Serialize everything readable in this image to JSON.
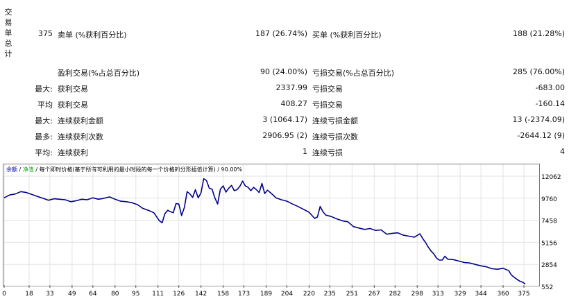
{
  "side_label": [
    "交",
    "易",
    "单",
    "总",
    "计"
  ],
  "summary": {
    "total_trades": "375",
    "short_label": "卖单 (%获利百分比)",
    "short_value": "187 (26.74%)",
    "long_label": "买单 (%获利百分比)",
    "long_value": "188 (21.28%)"
  },
  "rows": [
    {
      "prefix": "",
      "left_label": "盈利交易(%占总百分比)",
      "left_value": "90 (24.00%)",
      "right_label": "亏损交易(%占总百分比)",
      "right_value": "285 (76.00%)"
    },
    {
      "prefix": "最大:",
      "left_label": "获利交易",
      "left_value": "2337.99",
      "right_label": "亏损交易",
      "right_value": "-683.00"
    },
    {
      "prefix": "平均",
      "left_label": "获利交易",
      "left_value": "408.27",
      "right_label": "亏损交易",
      "right_value": "-160.14"
    },
    {
      "prefix": "最大:",
      "left_label": "连续获利金额",
      "left_value": "3 (1064.17)",
      "right_label": "连续亏损金额",
      "right_value": "13 (-2374.09)"
    },
    {
      "prefix": "最多:",
      "left_label": "连续获利次数",
      "left_value": "2906.95 (2)",
      "right_label": "连续亏损次数",
      "right_value": "-2644.12 (9)"
    },
    {
      "prefix": "平均:",
      "left_label": "连续获利",
      "left_value": "1",
      "right_label": "连续亏损",
      "right_value": "4"
    }
  ],
  "chart_legend": {
    "balance": "余额",
    "sep1": " / ",
    "equity": "净值",
    "sep2": " / ",
    "model": "每个即时价格(基于所有可利用的最小时段的每一个价格的分形插值计算)",
    "sep3": " / ",
    "quality": "90.00%"
  },
  "chart_data": {
    "type": "line",
    "title": "",
    "xlabel": "",
    "ylabel": "",
    "x_ticks": [
      "0",
      "18",
      "33",
      "49",
      "64",
      "80",
      "95",
      "111",
      "126",
      "142",
      "158",
      "173",
      "189",
      "204",
      "220",
      "235",
      "251",
      "267",
      "282",
      "298",
      "313",
      "329",
      "344",
      "360",
      "375"
    ],
    "y_ticks": [
      "12062",
      "9760",
      "7458",
      "5156",
      "2854",
      "552"
    ],
    "ylim": [
      552,
      12062
    ],
    "xlim": [
      0,
      385
    ],
    "grid": true,
    "colors": {
      "line": "#00008b",
      "grid": "#e3e3e3"
    },
    "series": [
      {
        "x": [
          0,
          4,
          8,
          12,
          16,
          20,
          24,
          28,
          32,
          36,
          40,
          44,
          48,
          52,
          56,
          60,
          64,
          68,
          72,
          76,
          80,
          84,
          88,
          92,
          96,
          100,
          104,
          108,
          112,
          114,
          116,
          118,
          120,
          122,
          124,
          126,
          128,
          130,
          132,
          134,
          136,
          138,
          140,
          142,
          144,
          146,
          148,
          150,
          152,
          154,
          156,
          158,
          160,
          162,
          164,
          166,
          168,
          170,
          172,
          174,
          176,
          178,
          180,
          182,
          184,
          186,
          188,
          190,
          192,
          194,
          196,
          198,
          200,
          204,
          208,
          212,
          216,
          220,
          224,
          226,
          228,
          230,
          232,
          236,
          240,
          244,
          248,
          252,
          256,
          260,
          264,
          268,
          272,
          276,
          280,
          284,
          288,
          292,
          296,
          300,
          302,
          304,
          306,
          308,
          310,
          312,
          314,
          316,
          318,
          320,
          324,
          328,
          332,
          336,
          340,
          344,
          348,
          352,
          356,
          360,
          364,
          366,
          368,
          370,
          372,
          374,
          376
        ],
        "values": [
          9800,
          10100,
          10200,
          10450,
          10350,
          10150,
          9950,
          9750,
          9550,
          9700,
          9650,
          9600,
          9400,
          9500,
          9650,
          9600,
          9800,
          9650,
          9750,
          9900,
          9650,
          9450,
          9400,
          9300,
          9100,
          8700,
          8500,
          8250,
          7400,
          7200,
          8150,
          8500,
          8350,
          8250,
          9200,
          9150,
          7950,
          8800,
          10450,
          10200,
          9850,
          10650,
          9800,
          10300,
          11800,
          11600,
          10800,
          10700,
          9800,
          9150,
          10700,
          11050,
          10400,
          10800,
          11100,
          10550,
          10650,
          11000,
          11550,
          11050,
          10900,
          10550,
          10900,
          10650,
          10350,
          11300,
          10250,
          10600,
          10350,
          10100,
          9800,
          9700,
          9600,
          9450,
          9150,
          8900,
          8600,
          8300,
          7650,
          7800,
          8900,
          8350,
          8000,
          7850,
          7600,
          7400,
          7300,
          6800,
          6650,
          6500,
          6600,
          6400,
          6450,
          6000,
          6100,
          6150,
          5900,
          5800,
          5700,
          6050,
          5550,
          5150,
          4650,
          4250,
          3950,
          3500,
          3300,
          3300,
          3700,
          3400,
          3350,
          3200,
          3050,
          3000,
          2850,
          2700,
          2600,
          2400,
          2350,
          2450,
          2200,
          1750,
          1500,
          1300,
          1100,
          1000,
          800
        ]
      }
    ]
  }
}
